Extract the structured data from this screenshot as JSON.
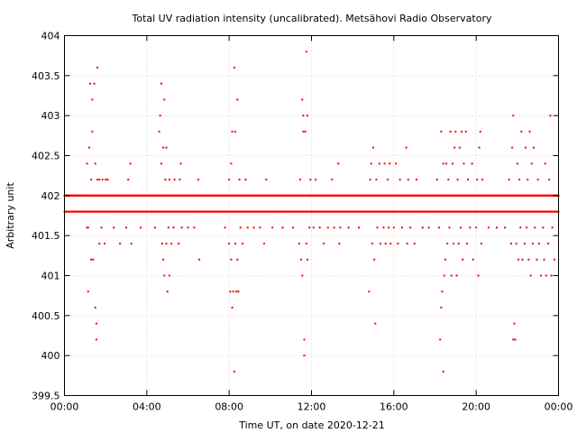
{
  "chart_data": {
    "type": "scatter",
    "title": "Total UV radiation intensity (uncalibrated). Metsähovi Radio Observatory",
    "xlabel": "Time UT, on date 2020-12-21",
    "ylabel": "Arbitrary unit",
    "x_unit": "hours UT",
    "xlim": [
      0,
      24
    ],
    "ylim": [
      399.5,
      404
    ],
    "x_ticks": [
      0,
      4,
      8,
      12,
      16,
      20,
      24
    ],
    "x_tick_labels": [
      "00:00",
      "04:00",
      "08:00",
      "12:00",
      "16:00",
      "20:00",
      "00:00"
    ],
    "y_ticks": [
      399.5,
      400,
      400.5,
      401,
      401.5,
      402,
      402.5,
      403,
      403.5,
      404
    ],
    "y_tick_labels": [
      "399.5",
      "400",
      "400.5",
      "401",
      "401.5",
      "402",
      "402.5",
      "403",
      "403.5",
      "404"
    ],
    "grid": true,
    "series_color": "#ff0000",
    "marker": "dot",
    "base_levels": [
      401.8,
      402.0
    ],
    "base_level_note_free": true,
    "points": [
      [
        0.0,
        401.8
      ],
      [
        0.05,
        402.0
      ],
      [
        0.1,
        401.8
      ],
      [
        0.15,
        402.0
      ],
      [
        0.2,
        401.8
      ],
      [
        0.25,
        402.0
      ],
      [
        0.3,
        401.8
      ],
      [
        0.35,
        402.0
      ],
      [
        0.4,
        401.8
      ],
      [
        0.45,
        402.0
      ],
      [
        0.5,
        401.8
      ],
      [
        0.55,
        402.0
      ],
      [
        0.6,
        401.8
      ],
      [
        0.65,
        402.0
      ],
      [
        0.7,
        401.8
      ],
      [
        0.75,
        402.0
      ],
      [
        0.8,
        401.8
      ],
      [
        0.85,
        402.0
      ],
      [
        0.9,
        401.8
      ],
      [
        0.95,
        402.0
      ],
      [
        1.0,
        401.8
      ],
      [
        1.05,
        402.0
      ],
      [
        1.1,
        401.6
      ],
      [
        1.1,
        402.4
      ],
      [
        1.15,
        400.8
      ],
      [
        1.15,
        401.6
      ],
      [
        1.2,
        402.0
      ],
      [
        1.2,
        402.6
      ],
      [
        1.25,
        403.4
      ],
      [
        1.25,
        401.8
      ],
      [
        1.3,
        402.2
      ],
      [
        1.3,
        401.2
      ],
      [
        1.35,
        402.8
      ],
      [
        1.35,
        403.2
      ],
      [
        1.4,
        401.2
      ],
      [
        1.4,
        402.0
      ],
      [
        1.45,
        403.4
      ],
      [
        1.45,
        401.8
      ],
      [
        1.5,
        400.6
      ],
      [
        1.5,
        402.4
      ],
      [
        1.55,
        400.2
      ],
      [
        1.55,
        400.4
      ],
      [
        1.6,
        403.6
      ],
      [
        1.6,
        402.2
      ],
      [
        1.65,
        401.8
      ],
      [
        1.7,
        402.2
      ],
      [
        1.7,
        401.4
      ],
      [
        1.75,
        402.0
      ],
      [
        1.8,
        401.6
      ],
      [
        1.85,
        402.2
      ],
      [
        1.9,
        401.8
      ],
      [
        1.95,
        401.4
      ],
      [
        2.0,
        402.2
      ],
      [
        2.05,
        401.8
      ],
      [
        2.1,
        402.2
      ],
      [
        2.15,
        402.0
      ],
      [
        2.2,
        401.8
      ],
      [
        2.3,
        402.0
      ],
      [
        2.4,
        401.6
      ],
      [
        2.5,
        401.8
      ],
      [
        2.6,
        402.0
      ],
      [
        2.7,
        401.4
      ],
      [
        2.8,
        401.8
      ],
      [
        2.9,
        402.0
      ],
      [
        3.0,
        401.6
      ],
      [
        3.1,
        402.2
      ],
      [
        3.2,
        402.4
      ],
      [
        3.25,
        401.4
      ],
      [
        3.3,
        401.8
      ],
      [
        3.4,
        402.0
      ],
      [
        3.5,
        401.8
      ],
      [
        3.6,
        402.0
      ],
      [
        3.7,
        401.6
      ],
      [
        3.8,
        401.8
      ],
      [
        3.9,
        402.0
      ],
      [
        4.0,
        401.8
      ],
      [
        4.1,
        402.0
      ],
      [
        4.2,
        401.8
      ],
      [
        4.3,
        402.0
      ],
      [
        4.4,
        401.6
      ],
      [
        4.5,
        401.8
      ],
      [
        4.55,
        402.0
      ],
      [
        4.6,
        402.8
      ],
      [
        4.65,
        403.0
      ],
      [
        4.7,
        403.4
      ],
      [
        4.7,
        402.4
      ],
      [
        4.75,
        401.4
      ],
      [
        4.8,
        402.6
      ],
      [
        4.8,
        401.2
      ],
      [
        4.85,
        403.2
      ],
      [
        4.85,
        401.0
      ],
      [
        4.9,
        402.2
      ],
      [
        4.95,
        401.4
      ],
      [
        4.95,
        402.6
      ],
      [
        5.0,
        400.8
      ],
      [
        5.0,
        402.0
      ],
      [
        5.05,
        401.6
      ],
      [
        5.1,
        401.0
      ],
      [
        5.1,
        402.2
      ],
      [
        5.15,
        401.8
      ],
      [
        5.2,
        401.4
      ],
      [
        5.25,
        402.0
      ],
      [
        5.3,
        401.6
      ],
      [
        5.35,
        402.2
      ],
      [
        5.4,
        401.8
      ],
      [
        5.5,
        402.0
      ],
      [
        5.55,
        401.4
      ],
      [
        5.6,
        402.2
      ],
      [
        5.65,
        402.4
      ],
      [
        5.7,
        401.6
      ],
      [
        5.8,
        402.0
      ],
      [
        5.9,
        401.8
      ],
      [
        6.0,
        401.6
      ],
      [
        6.1,
        402.0
      ],
      [
        6.2,
        401.8
      ],
      [
        6.3,
        401.6
      ],
      [
        6.4,
        402.0
      ],
      [
        6.5,
        402.2
      ],
      [
        6.55,
        401.2
      ],
      [
        6.6,
        401.8
      ],
      [
        6.7,
        402.0
      ],
      [
        6.8,
        401.8
      ],
      [
        6.9,
        402.0
      ],
      [
        7.0,
        401.8
      ],
      [
        7.1,
        402.0
      ],
      [
        7.2,
        401.8
      ],
      [
        7.3,
        402.0
      ],
      [
        7.4,
        401.8
      ],
      [
        7.5,
        402.0
      ],
      [
        7.6,
        401.8
      ],
      [
        7.7,
        402.0
      ],
      [
        7.8,
        401.6
      ],
      [
        7.9,
        402.0
      ],
      [
        8.0,
        402.2
      ],
      [
        8.0,
        401.4
      ],
      [
        8.05,
        400.8
      ],
      [
        8.1,
        402.4
      ],
      [
        8.1,
        401.2
      ],
      [
        8.15,
        400.6
      ],
      [
        8.15,
        402.8
      ],
      [
        8.2,
        400.8
      ],
      [
        8.25,
        403.6
      ],
      [
        8.25,
        399.8
      ],
      [
        8.3,
        402.8
      ],
      [
        8.3,
        401.4
      ],
      [
        8.35,
        400.8
      ],
      [
        8.4,
        403.2
      ],
      [
        8.4,
        401.2
      ],
      [
        8.45,
        400.8
      ],
      [
        8.5,
        402.2
      ],
      [
        8.55,
        401.6
      ],
      [
        8.6,
        402.0
      ],
      [
        8.65,
        401.4
      ],
      [
        8.7,
        401.8
      ],
      [
        8.8,
        402.2
      ],
      [
        8.9,
        401.6
      ],
      [
        9.0,
        402.0
      ],
      [
        9.1,
        401.8
      ],
      [
        9.2,
        401.6
      ],
      [
        9.3,
        402.0
      ],
      [
        9.4,
        401.8
      ],
      [
        9.5,
        401.6
      ],
      [
        9.6,
        402.0
      ],
      [
        9.7,
        401.4
      ],
      [
        9.8,
        402.2
      ],
      [
        9.9,
        401.8
      ],
      [
        10.0,
        402.0
      ],
      [
        10.1,
        401.6
      ],
      [
        10.2,
        401.8
      ],
      [
        10.3,
        402.0
      ],
      [
        10.4,
        401.8
      ],
      [
        10.5,
        402.0
      ],
      [
        10.6,
        401.6
      ],
      [
        10.7,
        401.8
      ],
      [
        10.8,
        402.0
      ],
      [
        10.9,
        401.8
      ],
      [
        11.0,
        402.0
      ],
      [
        11.1,
        401.6
      ],
      [
        11.2,
        401.8
      ],
      [
        11.3,
        402.0
      ],
      [
        11.4,
        401.4
      ],
      [
        11.45,
        402.2
      ],
      [
        11.5,
        401.2
      ],
      [
        11.55,
        403.2
      ],
      [
        11.55,
        401.0
      ],
      [
        11.6,
        403.0
      ],
      [
        11.6,
        402.8
      ],
      [
        11.65,
        400.2
      ],
      [
        11.65,
        400.0
      ],
      [
        11.7,
        402.8
      ],
      [
        11.75,
        403.8
      ],
      [
        11.75,
        401.4
      ],
      [
        11.8,
        403.0
      ],
      [
        11.8,
        401.2
      ],
      [
        11.85,
        402.0
      ],
      [
        11.9,
        401.6
      ],
      [
        11.95,
        402.2
      ],
      [
        12.0,
        401.8
      ],
      [
        12.1,
        401.6
      ],
      [
        12.2,
        402.2
      ],
      [
        12.3,
        402.0
      ],
      [
        12.4,
        401.6
      ],
      [
        12.5,
        401.8
      ],
      [
        12.6,
        401.4
      ],
      [
        12.7,
        402.0
      ],
      [
        12.8,
        401.6
      ],
      [
        12.9,
        401.8
      ],
      [
        13.0,
        402.2
      ],
      [
        13.1,
        401.6
      ],
      [
        13.2,
        402.0
      ],
      [
        13.3,
        402.4
      ],
      [
        13.35,
        401.4
      ],
      [
        13.4,
        401.6
      ],
      [
        13.5,
        402.0
      ],
      [
        13.6,
        401.8
      ],
      [
        13.7,
        402.0
      ],
      [
        13.8,
        401.6
      ],
      [
        13.9,
        401.8
      ],
      [
        14.0,
        402.0
      ],
      [
        14.1,
        401.8
      ],
      [
        14.2,
        402.0
      ],
      [
        14.3,
        401.6
      ],
      [
        14.4,
        401.8
      ],
      [
        14.5,
        402.0
      ],
      [
        14.6,
        401.8
      ],
      [
        14.7,
        402.0
      ],
      [
        14.8,
        400.8
      ],
      [
        14.85,
        402.2
      ],
      [
        14.9,
        402.4
      ],
      [
        14.95,
        401.4
      ],
      [
        15.0,
        402.6
      ],
      [
        15.05,
        401.2
      ],
      [
        15.1,
        400.4
      ],
      [
        15.15,
        402.2
      ],
      [
        15.2,
        401.6
      ],
      [
        15.3,
        402.4
      ],
      [
        15.35,
        401.4
      ],
      [
        15.4,
        402.0
      ],
      [
        15.5,
        401.6
      ],
      [
        15.55,
        402.4
      ],
      [
        15.6,
        401.4
      ],
      [
        15.7,
        402.2
      ],
      [
        15.75,
        401.6
      ],
      [
        15.8,
        402.4
      ],
      [
        15.85,
        401.4
      ],
      [
        15.9,
        402.0
      ],
      [
        16.0,
        401.6
      ],
      [
        16.1,
        402.4
      ],
      [
        16.2,
        401.4
      ],
      [
        16.3,
        402.2
      ],
      [
        16.4,
        401.6
      ],
      [
        16.5,
        402.0
      ],
      [
        16.6,
        402.6
      ],
      [
        16.65,
        401.4
      ],
      [
        16.7,
        402.2
      ],
      [
        16.8,
        401.6
      ],
      [
        16.9,
        402.0
      ],
      [
        17.0,
        401.4
      ],
      [
        17.1,
        402.2
      ],
      [
        17.2,
        401.8
      ],
      [
        17.3,
        402.0
      ],
      [
        17.4,
        401.6
      ],
      [
        17.5,
        401.8
      ],
      [
        17.6,
        402.0
      ],
      [
        17.7,
        401.6
      ],
      [
        17.8,
        401.8
      ],
      [
        17.9,
        402.0
      ],
      [
        18.0,
        401.8
      ],
      [
        18.1,
        402.2
      ],
      [
        18.2,
        401.6
      ],
      [
        18.25,
        400.2
      ],
      [
        18.3,
        402.8
      ],
      [
        18.3,
        400.6
      ],
      [
        18.35,
        400.8
      ],
      [
        18.4,
        399.8
      ],
      [
        18.4,
        402.4
      ],
      [
        18.45,
        401.0
      ],
      [
        18.5,
        401.2
      ],
      [
        18.55,
        402.4
      ],
      [
        18.6,
        401.4
      ],
      [
        18.65,
        402.2
      ],
      [
        18.7,
        401.6
      ],
      [
        18.75,
        402.8
      ],
      [
        18.8,
        401.0
      ],
      [
        18.85,
        402.4
      ],
      [
        18.9,
        401.4
      ],
      [
        18.95,
        402.6
      ],
      [
        19.0,
        402.8
      ],
      [
        19.05,
        401.0
      ],
      [
        19.1,
        402.2
      ],
      [
        19.15,
        401.4
      ],
      [
        19.2,
        402.6
      ],
      [
        19.25,
        401.6
      ],
      [
        19.3,
        402.8
      ],
      [
        19.35,
        401.2
      ],
      [
        19.4,
        402.4
      ],
      [
        19.5,
        402.8
      ],
      [
        19.55,
        401.4
      ],
      [
        19.6,
        402.2
      ],
      [
        19.7,
        401.6
      ],
      [
        19.8,
        402.4
      ],
      [
        19.85,
        401.2
      ],
      [
        19.9,
        402.0
      ],
      [
        20.0,
        401.6
      ],
      [
        20.05,
        402.2
      ],
      [
        20.1,
        401.0
      ],
      [
        20.15,
        402.6
      ],
      [
        20.2,
        402.8
      ],
      [
        20.25,
        401.4
      ],
      [
        20.3,
        402.2
      ],
      [
        20.4,
        401.8
      ],
      [
        20.5,
        402.0
      ],
      [
        20.6,
        401.6
      ],
      [
        20.7,
        402.0
      ],
      [
        20.8,
        401.8
      ],
      [
        20.9,
        402.0
      ],
      [
        21.0,
        401.6
      ],
      [
        21.1,
        402.0
      ],
      [
        21.2,
        401.8
      ],
      [
        21.3,
        402.0
      ],
      [
        21.4,
        401.6
      ],
      [
        21.5,
        402.0
      ],
      [
        21.6,
        402.2
      ],
      [
        21.7,
        401.4
      ],
      [
        21.75,
        402.6
      ],
      [
        21.8,
        403.0
      ],
      [
        21.8,
        400.2
      ],
      [
        21.85,
        400.4
      ],
      [
        21.9,
        400.2
      ],
      [
        21.95,
        401.4
      ],
      [
        22.0,
        402.4
      ],
      [
        22.05,
        401.2
      ],
      [
        22.1,
        402.2
      ],
      [
        22.15,
        401.6
      ],
      [
        22.2,
        402.8
      ],
      [
        22.25,
        401.2
      ],
      [
        22.3,
        402.0
      ],
      [
        22.35,
        401.4
      ],
      [
        22.4,
        402.6
      ],
      [
        22.45,
        401.6
      ],
      [
        22.5,
        402.2
      ],
      [
        22.55,
        401.2
      ],
      [
        22.6,
        402.8
      ],
      [
        22.65,
        401.0
      ],
      [
        22.7,
        402.4
      ],
      [
        22.75,
        401.4
      ],
      [
        22.8,
        402.6
      ],
      [
        22.85,
        401.6
      ],
      [
        22.9,
        402.0
      ],
      [
        22.95,
        401.2
      ],
      [
        23.0,
        402.2
      ],
      [
        23.05,
        401.4
      ],
      [
        23.1,
        401.8
      ],
      [
        23.15,
        401.0
      ],
      [
        23.2,
        402.0
      ],
      [
        23.25,
        401.6
      ],
      [
        23.3,
        401.2
      ],
      [
        23.35,
        402.4
      ],
      [
        23.4,
        401.0
      ],
      [
        23.45,
        401.8
      ],
      [
        23.5,
        401.4
      ],
      [
        23.55,
        402.2
      ],
      [
        23.6,
        403.0
      ],
      [
        23.65,
        401.0
      ],
      [
        23.7,
        401.6
      ],
      [
        23.75,
        402.0
      ],
      [
        23.8,
        401.2
      ],
      [
        23.85,
        401.8
      ],
      [
        23.9,
        402.0
      ],
      [
        23.95,
        401.8
      ]
    ]
  }
}
